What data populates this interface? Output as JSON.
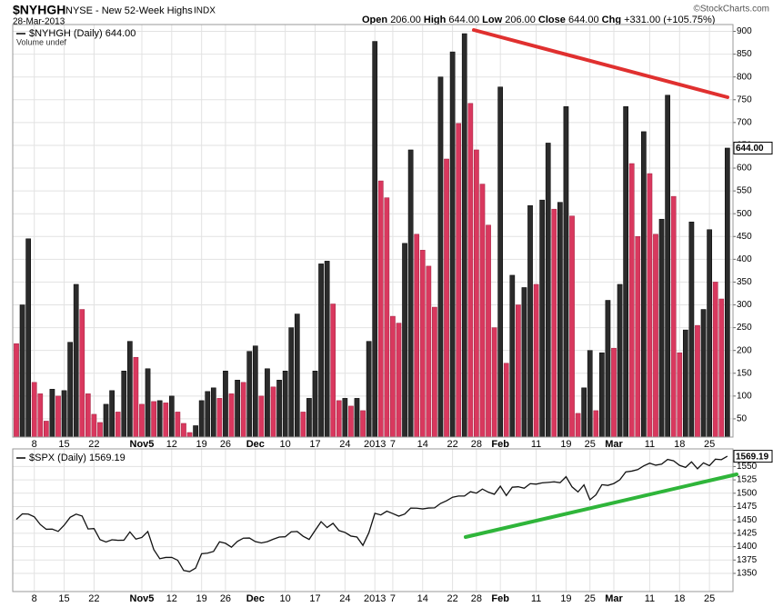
{
  "header": {
    "symbol": "$NYHGH",
    "name": "NYSE - New 52-Week Highs",
    "exchange": "INDX",
    "date": "28-Mar-2013",
    "quote": [
      {
        "label": "Open",
        "value": "206.00"
      },
      {
        "label": "High",
        "value": "644.00"
      },
      {
        "label": "Low",
        "value": "206.00"
      },
      {
        "label": "Close",
        "value": "644.00"
      },
      {
        "label": "Chg",
        "value": "+331.00 (+105.75%)"
      }
    ],
    "credit": "©StockCharts.com"
  },
  "chart_data": [
    {
      "type": "bar",
      "legend": "$NYHGH (Daily) 644.00",
      "legend_extra": "Volume undef",
      "last_value_label": "644.00",
      "up_color": "#2b2b2b",
      "down_color": "#d9385e",
      "grid": true,
      "ylim": [
        10,
        915
      ],
      "yticks": [
        50,
        100,
        150,
        200,
        250,
        300,
        350,
        400,
        450,
        500,
        550,
        600,
        650,
        700,
        750,
        800,
        850,
        900
      ],
      "categories": [
        null,
        null,
        null,
        "8",
        null,
        null,
        null,
        null,
        "15",
        null,
        null,
        null,
        null,
        "22",
        null,
        null,
        null,
        null,
        null,
        null,
        null,
        "Nov5",
        null,
        null,
        null,
        null,
        "12",
        null,
        null,
        null,
        null,
        "19",
        null,
        null,
        null,
        "26",
        null,
        null,
        null,
        null,
        "Dec",
        null,
        null,
        null,
        null,
        "10",
        null,
        null,
        null,
        null,
        "17",
        null,
        null,
        null,
        null,
        "24",
        null,
        null,
        null,
        null,
        "2013",
        null,
        null,
        "7",
        null,
        null,
        null,
        null,
        "14",
        null,
        null,
        null,
        null,
        "22",
        null,
        null,
        null,
        "28",
        null,
        null,
        null,
        "Feb",
        null,
        null,
        null,
        null,
        null,
        "11",
        null,
        null,
        null,
        null,
        "19",
        null,
        null,
        null,
        "25",
        null,
        null,
        null,
        "Mar",
        null,
        null,
        null,
        null,
        null,
        "11",
        null,
        null,
        null,
        null,
        "18",
        null,
        null,
        null,
        null,
        "25",
        null,
        null,
        null
      ],
      "values": [
        215,
        300,
        445,
        130,
        105,
        45,
        115,
        100,
        112,
        218,
        345,
        290,
        105,
        60,
        42,
        82,
        112,
        65,
        155,
        220,
        185,
        82,
        160,
        88,
        90,
        85,
        100,
        65,
        40,
        20,
        35,
        90,
        110,
        118,
        95,
        155,
        105,
        135,
        130,
        198,
        210,
        100,
        160,
        120,
        135,
        155,
        250,
        280,
        65,
        95,
        155,
        390,
        396,
        302,
        90,
        95,
        78,
        95,
        68,
        220,
        878,
        572,
        535,
        275,
        260,
        435,
        640,
        455,
        420,
        385,
        295,
        800,
        620,
        855,
        698,
        895,
        742,
        640,
        565,
        475,
        250,
        778,
        172,
        365,
        300,
        338,
        518,
        345,
        530,
        655,
        510,
        525,
        735,
        495,
        62,
        118,
        200,
        68,
        195,
        310,
        205,
        345,
        735,
        610,
        450,
        680,
        588,
        455,
        488,
        760,
        538,
        195,
        245,
        482,
        255,
        290,
        465,
        350,
        313,
        644
      ]
    },
    {
      "type": "line",
      "legend": "$SPX (Daily) 1569.19",
      "last_value_label": "1569.19",
      "color": "#111111",
      "grid": true,
      "ylim": [
        1316,
        1583
      ],
      "yticks": [
        1350,
        1375,
        1400,
        1425,
        1450,
        1475,
        1500,
        1525,
        1550
      ],
      "categories": [
        null,
        null,
        null,
        "8",
        null,
        null,
        null,
        null,
        "15",
        null,
        null,
        null,
        null,
        "22",
        null,
        null,
        null,
        null,
        null,
        null,
        null,
        "Nov5",
        null,
        null,
        null,
        null,
        "12",
        null,
        null,
        null,
        null,
        "19",
        null,
        null,
        null,
        "26",
        null,
        null,
        null,
        null,
        "Dec",
        null,
        null,
        null,
        null,
        "10",
        null,
        null,
        null,
        null,
        "17",
        null,
        null,
        null,
        null,
        "24",
        null,
        null,
        null,
        null,
        "2013",
        null,
        null,
        "7",
        null,
        null,
        null,
        null,
        "14",
        null,
        null,
        null,
        null,
        "22",
        null,
        null,
        null,
        "28",
        null,
        null,
        null,
        "Feb",
        null,
        null,
        null,
        null,
        null,
        "11",
        null,
        null,
        null,
        null,
        "19",
        null,
        null,
        null,
        "25",
        null,
        null,
        null,
        "Mar",
        null,
        null,
        null,
        null,
        null,
        "11",
        null,
        null,
        null,
        null,
        "18",
        null,
        null,
        null,
        null,
        "25",
        null,
        null,
        null
      ],
      "values": [
        1450.99,
        1461.4,
        1460.93,
        1455.88,
        1441.48,
        1432.56,
        1432.84,
        1428.59,
        1440.13,
        1454.92,
        1460.91,
        1457.34,
        1433.19,
        1433.82,
        1413.11,
        1408.75,
        1412.97,
        1411.94,
        1412.16,
        1427.59,
        1414.2,
        1417.26,
        1428.39,
        1394.53,
        1377.51,
        1379.85,
        1380.03,
        1374.53,
        1355.49,
        1353.33,
        1359.88,
        1386.89,
        1387.81,
        1391.03,
        1409.15,
        1406.29,
        1398.94,
        1409.93,
        1415.95,
        1416.18,
        1409.46,
        1407.05,
        1409.28,
        1413.94,
        1418.07,
        1418.55,
        1427.84,
        1428.48,
        1419.45,
        1413.58,
        1430.36,
        1446.79,
        1435.81,
        1443.69,
        1430.15,
        1426.66,
        1419.83,
        1418.1,
        1402.43,
        1426.19,
        1462.42,
        1459.37,
        1466.47,
        1461.89,
        1457.15,
        1461.02,
        1472.12,
        1472.05,
        1470.68,
        1472.34,
        1472.63,
        1480.94,
        1485.98,
        1492.56,
        1494.81,
        1494.82,
        1502.96,
        1500.18,
        1507.84,
        1501.96,
        1498.11,
        1513.17,
        1495.71,
        1511.29,
        1512.12,
        1509.39,
        1517.93,
        1517.01,
        1519.43,
        1520.33,
        1521.38,
        1519.79,
        1530.94,
        1511.95,
        1502.42,
        1515.6,
        1487.85,
        1496.94,
        1515.99,
        1514.68,
        1518.2,
        1525.2,
        1539.79,
        1541.46,
        1544.26,
        1551.18,
        1556.22,
        1552.48,
        1554.52,
        1563.23,
        1560.7,
        1552.1,
        1548.34,
        1558.71,
        1545.8,
        1556.89,
        1551.69,
        1563.77,
        1562.85,
        1569.19
      ]
    }
  ]
}
